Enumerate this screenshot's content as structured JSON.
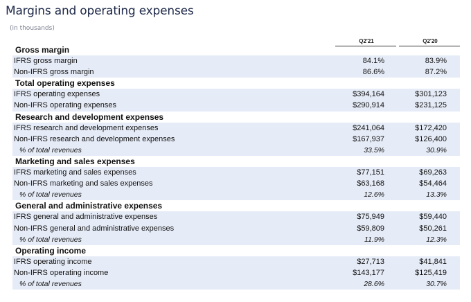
{
  "title": "Margins and operating expenses",
  "subtitle": "(in thousands)",
  "columns": [
    "Q2'21",
    "Q2'20"
  ],
  "rows": [
    {
      "type": "heading",
      "label": "Gross margin"
    },
    {
      "type": "data",
      "label": "IFRS gross margin",
      "v1": "84.1%",
      "v2": "83.9%"
    },
    {
      "type": "data",
      "label": "Non-IFRS gross margin",
      "v1": "86.6%",
      "v2": "87.2%"
    },
    {
      "type": "heading",
      "label": "Total operating expenses"
    },
    {
      "type": "data",
      "label": "IFRS operating expenses",
      "v1": "$394,164",
      "v2": "$301,123"
    },
    {
      "type": "data",
      "label": "Non-IFRS operating expenses",
      "v1": "$290,914",
      "v2": "$231,125"
    },
    {
      "type": "heading",
      "label": "Research and development expenses"
    },
    {
      "type": "data",
      "label": "IFRS research and development expenses",
      "v1": "$241,064",
      "v2": "$172,420"
    },
    {
      "type": "data",
      "label": "Non-IFRS research and development expenses",
      "v1": "$167,937",
      "v2": "$126,400"
    },
    {
      "type": "pct",
      "label": "% of total revenues",
      "v1": "33.5%",
      "v2": "30.9%"
    },
    {
      "type": "heading",
      "label": "Marketing and sales expenses"
    },
    {
      "type": "data",
      "label": "IFRS marketing and sales expenses",
      "v1": "$77,151",
      "v2": "$69,263"
    },
    {
      "type": "data",
      "label": "Non-IFRS marketing and sales expenses",
      "v1": "$63,168",
      "v2": "$54,464"
    },
    {
      "type": "pct",
      "label": "% of total revenues",
      "v1": "12.6%",
      "v2": "13.3%"
    },
    {
      "type": "heading",
      "label": "General and administrative expenses"
    },
    {
      "type": "data",
      "label": "IFRS general and administrative expenses",
      "v1": "$75,949",
      "v2": "$59,440"
    },
    {
      "type": "data",
      "label": "Non-IFRS general and administrative expenses",
      "v1": "$59,809",
      "v2": "$50,261"
    },
    {
      "type": "pct",
      "label": "% of total revenues",
      "v1": "11.9%",
      "v2": "12.3%"
    },
    {
      "type": "heading",
      "label": "Operating income"
    },
    {
      "type": "data",
      "label": "IFRS operating income",
      "v1": "$27,713",
      "v2": "$41,841"
    },
    {
      "type": "data",
      "label": "Non-IFRS operating income",
      "v1": "$143,177",
      "v2": "$125,419"
    },
    {
      "type": "pct",
      "label": "% of total revenues",
      "v1": "28.6%",
      "v2": "30.7%"
    }
  ]
}
